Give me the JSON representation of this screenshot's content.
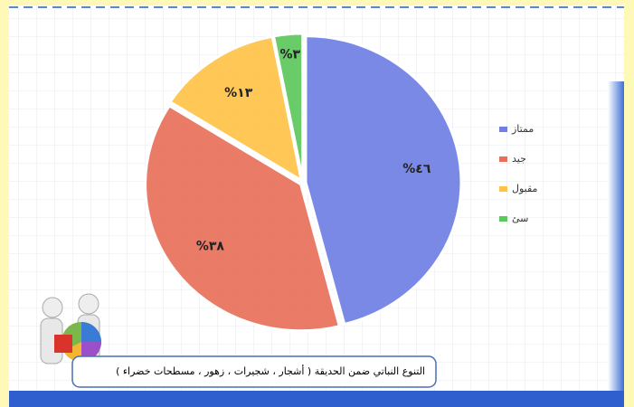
{
  "chart_data": {
    "type": "pie",
    "categories": [
      "ممتاز",
      "جيد",
      "مقبول",
      "سئ"
    ],
    "values": [
      46,
      38,
      13,
      3
    ],
    "value_labels": [
      "%٤٦",
      "%٣٨",
      "%١٣",
      "%٣"
    ],
    "colors": [
      "#6f7fe3",
      "#e8705a",
      "#ffc247",
      "#5cc85c"
    ],
    "caption": "التنوع النباتي ضمن الحديقة ( أشجار ، شجيرات ، زهور ، مسطحات خضراء )"
  }
}
